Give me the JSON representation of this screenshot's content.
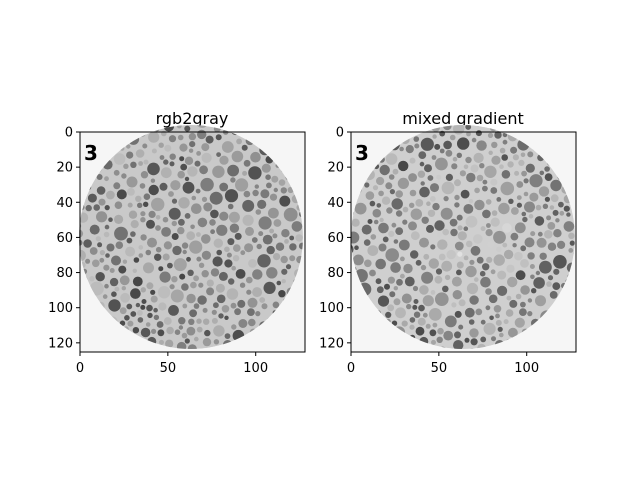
{
  "figure": {
    "panels": [
      {
        "title": "rgb2gray",
        "plate_label": "3",
        "image_size": [
          126,
          120
        ],
        "x_ticks": [
          "0",
          "50",
          "100"
        ],
        "y_ticks": [
          "0",
          "20",
          "40",
          "60",
          "80",
          "100",
          "120"
        ]
      },
      {
        "title": "mixed gradient",
        "plate_label": "3",
        "image_size": [
          126,
          120
        ],
        "x_ticks": [
          "0",
          "50",
          "100"
        ],
        "y_ticks": [
          "0",
          "20",
          "40",
          "60",
          "80",
          "100",
          "120"
        ]
      }
    ]
  }
}
